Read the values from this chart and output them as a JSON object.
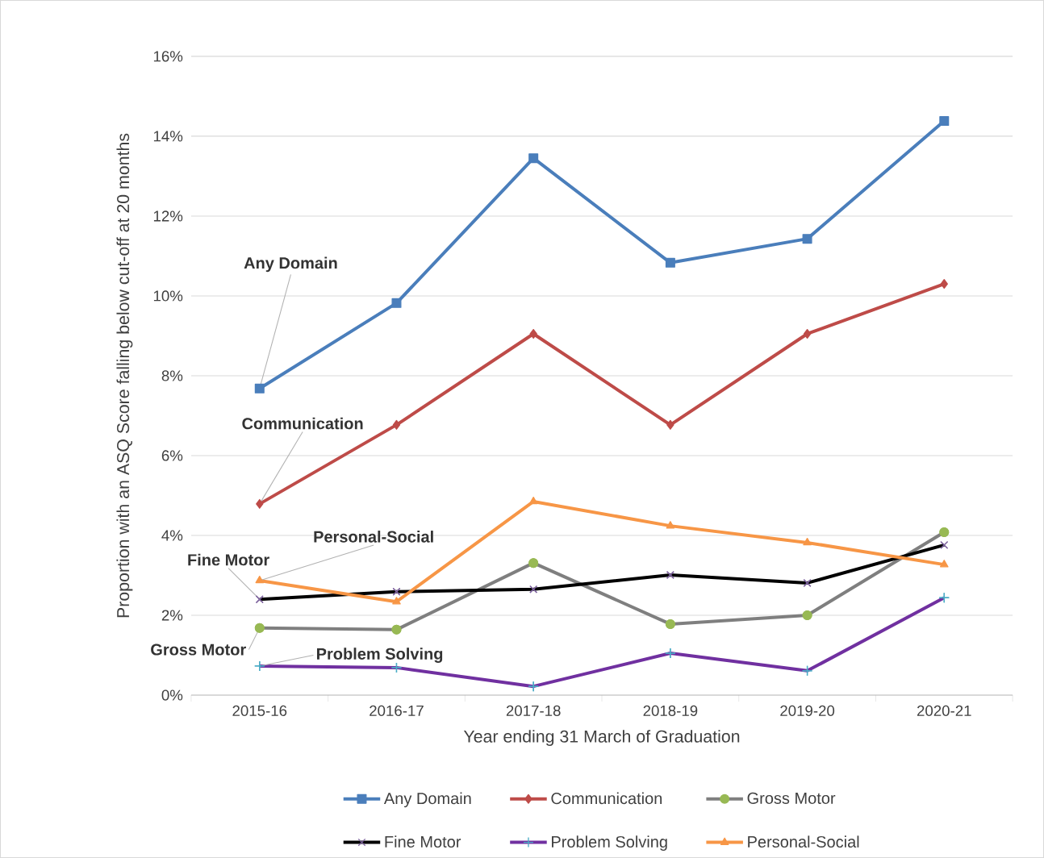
{
  "chart_data": {
    "type": "line",
    "xlabel": "Year ending 31 March of Graduation",
    "ylabel": "Proportion with an ASQ  Score falling below cut-off at 20 months",
    "categories": [
      "2015-16",
      "2016-17",
      "2017-18",
      "2018-19",
      "2019-20",
      "2020-21"
    ],
    "ylim": [
      0,
      16
    ],
    "yticks": [
      {
        "value": 0,
        "label": "0%"
      },
      {
        "value": 2,
        "label": "2%"
      },
      {
        "value": 4,
        "label": "4%"
      },
      {
        "value": 6,
        "label": "6%"
      },
      {
        "value": 8,
        "label": "8%"
      },
      {
        "value": 10,
        "label": "10%"
      },
      {
        "value": 12,
        "label": "12%"
      },
      {
        "value": 14,
        "label": "14%"
      },
      {
        "value": 16,
        "label": "16%"
      }
    ],
    "grid": "y",
    "legend": "bottom",
    "series": [
      {
        "name": "Any Domain",
        "color": "#4a7ebb",
        "marker": "square",
        "values": [
          7.68,
          9.82,
          13.45,
          10.83,
          11.43,
          14.38
        ]
      },
      {
        "name": "Communication",
        "color": "#be4b48",
        "marker": "diamond",
        "values": [
          4.79,
          6.77,
          9.05,
          6.77,
          9.05,
          10.3
        ]
      },
      {
        "name": "Gross Motor",
        "color": "#7f7f7f",
        "colors": [
          "#98b954",
          "#98b954",
          "#98b954",
          "#98b954",
          "#98b954",
          "#98b954"
        ],
        "marker": "circle",
        "values": [
          1.68,
          1.64,
          3.31,
          1.78,
          2.0,
          4.08
        ]
      },
      {
        "name": "Fine Motor",
        "color": "#000000",
        "colors": [
          "#7e649e",
          "#7e649e",
          "#7e649e",
          "#7e649e",
          "#7e649e",
          "#7e649e"
        ],
        "marker": "cross",
        "values": [
          2.4,
          2.59,
          2.65,
          3.01,
          2.81,
          3.76
        ]
      },
      {
        "name": "Problem Solving",
        "color": "#7030a0",
        "colors": [
          "#4bacc6",
          "#4bacc6",
          "#4bacc6",
          "#4bacc6",
          "#4bacc6",
          "#4bacc6"
        ],
        "marker": "plus",
        "values": [
          0.73,
          0.69,
          0.22,
          1.05,
          0.61,
          2.44
        ]
      },
      {
        "name": "Personal-Social",
        "color": "#f79646",
        "marker": "triangle",
        "values": [
          2.87,
          2.34,
          4.85,
          4.24,
          3.82,
          3.27
        ]
      }
    ],
    "annotations": [
      {
        "text": "Any Domain",
        "x": "2015-16",
        "y": 7.68
      },
      {
        "text": "Communication",
        "x": "2015-16",
        "y": 4.79
      },
      {
        "text": "Personal-Social",
        "x": "2015-16",
        "y": 2.87
      },
      {
        "text": "Fine Motor",
        "x": "2015-16",
        "y": 2.4
      },
      {
        "text": "Gross Motor",
        "x": "2015-16",
        "y": 1.68
      },
      {
        "text": "Problem Solving",
        "x": "2015-16",
        "y": 0.73
      }
    ]
  }
}
